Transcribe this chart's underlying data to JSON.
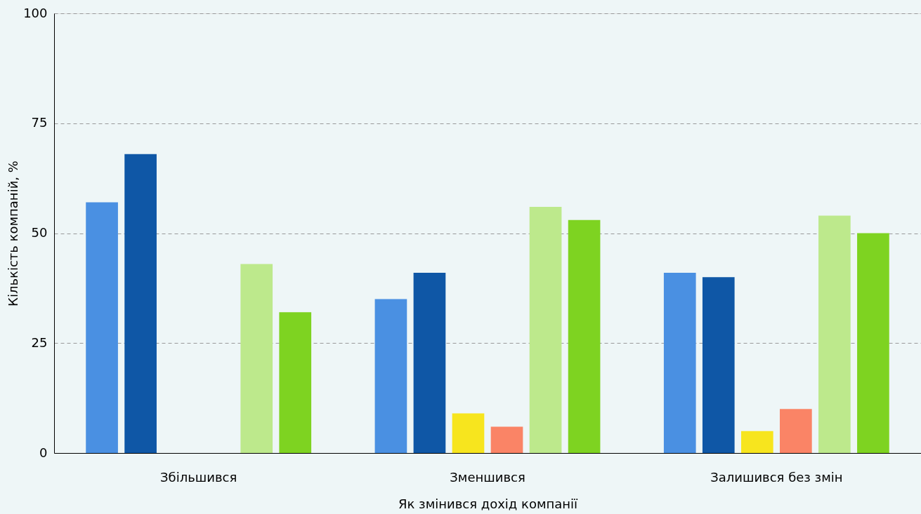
{
  "chart_data": {
    "type": "bar",
    "xlabel": "Як змінився дохід компанії",
    "ylabel": "Кількість компаній, %",
    "categories": [
      "Збільшився",
      "Зменшився",
      "Залишився без змін"
    ],
    "series": [
      {
        "color": "#4a90e2",
        "values": [
          57,
          35,
          41
        ]
      },
      {
        "color": "#0f57a6",
        "values": [
          68,
          41,
          40
        ]
      },
      {
        "color": "#f7e51e",
        "values": [
          null,
          9,
          5
        ]
      },
      {
        "color": "#fa8466",
        "values": [
          null,
          6,
          10
        ]
      },
      {
        "color": "#bde98c",
        "values": [
          43,
          56,
          54
        ]
      },
      {
        "color": "#7ed321",
        "values": [
          32,
          53,
          50
        ]
      }
    ],
    "ylim": [
      0,
      100
    ],
    "yticks": [
      0,
      25,
      50,
      75,
      100
    ],
    "grid": "y",
    "legend": false
  }
}
